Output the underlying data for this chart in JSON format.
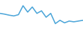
{
  "x": [
    0,
    1,
    2,
    3,
    4,
    5,
    6,
    7,
    8,
    9,
    10,
    11,
    12,
    13,
    14,
    15,
    16,
    17,
    18
  ],
  "y": [
    6.5,
    6.2,
    5.8,
    5.5,
    6.0,
    9.5,
    7.0,
    9.0,
    6.5,
    7.5,
    5.0,
    6.5,
    2.5,
    3.8,
    2.8,
    3.5,
    3.2,
    3.5,
    3.8
  ],
  "line_color": "#4da6d9",
  "linewidth": 1.2,
  "background_color": "#ffffff",
  "ylim": [
    0.0,
    12.0
  ]
}
